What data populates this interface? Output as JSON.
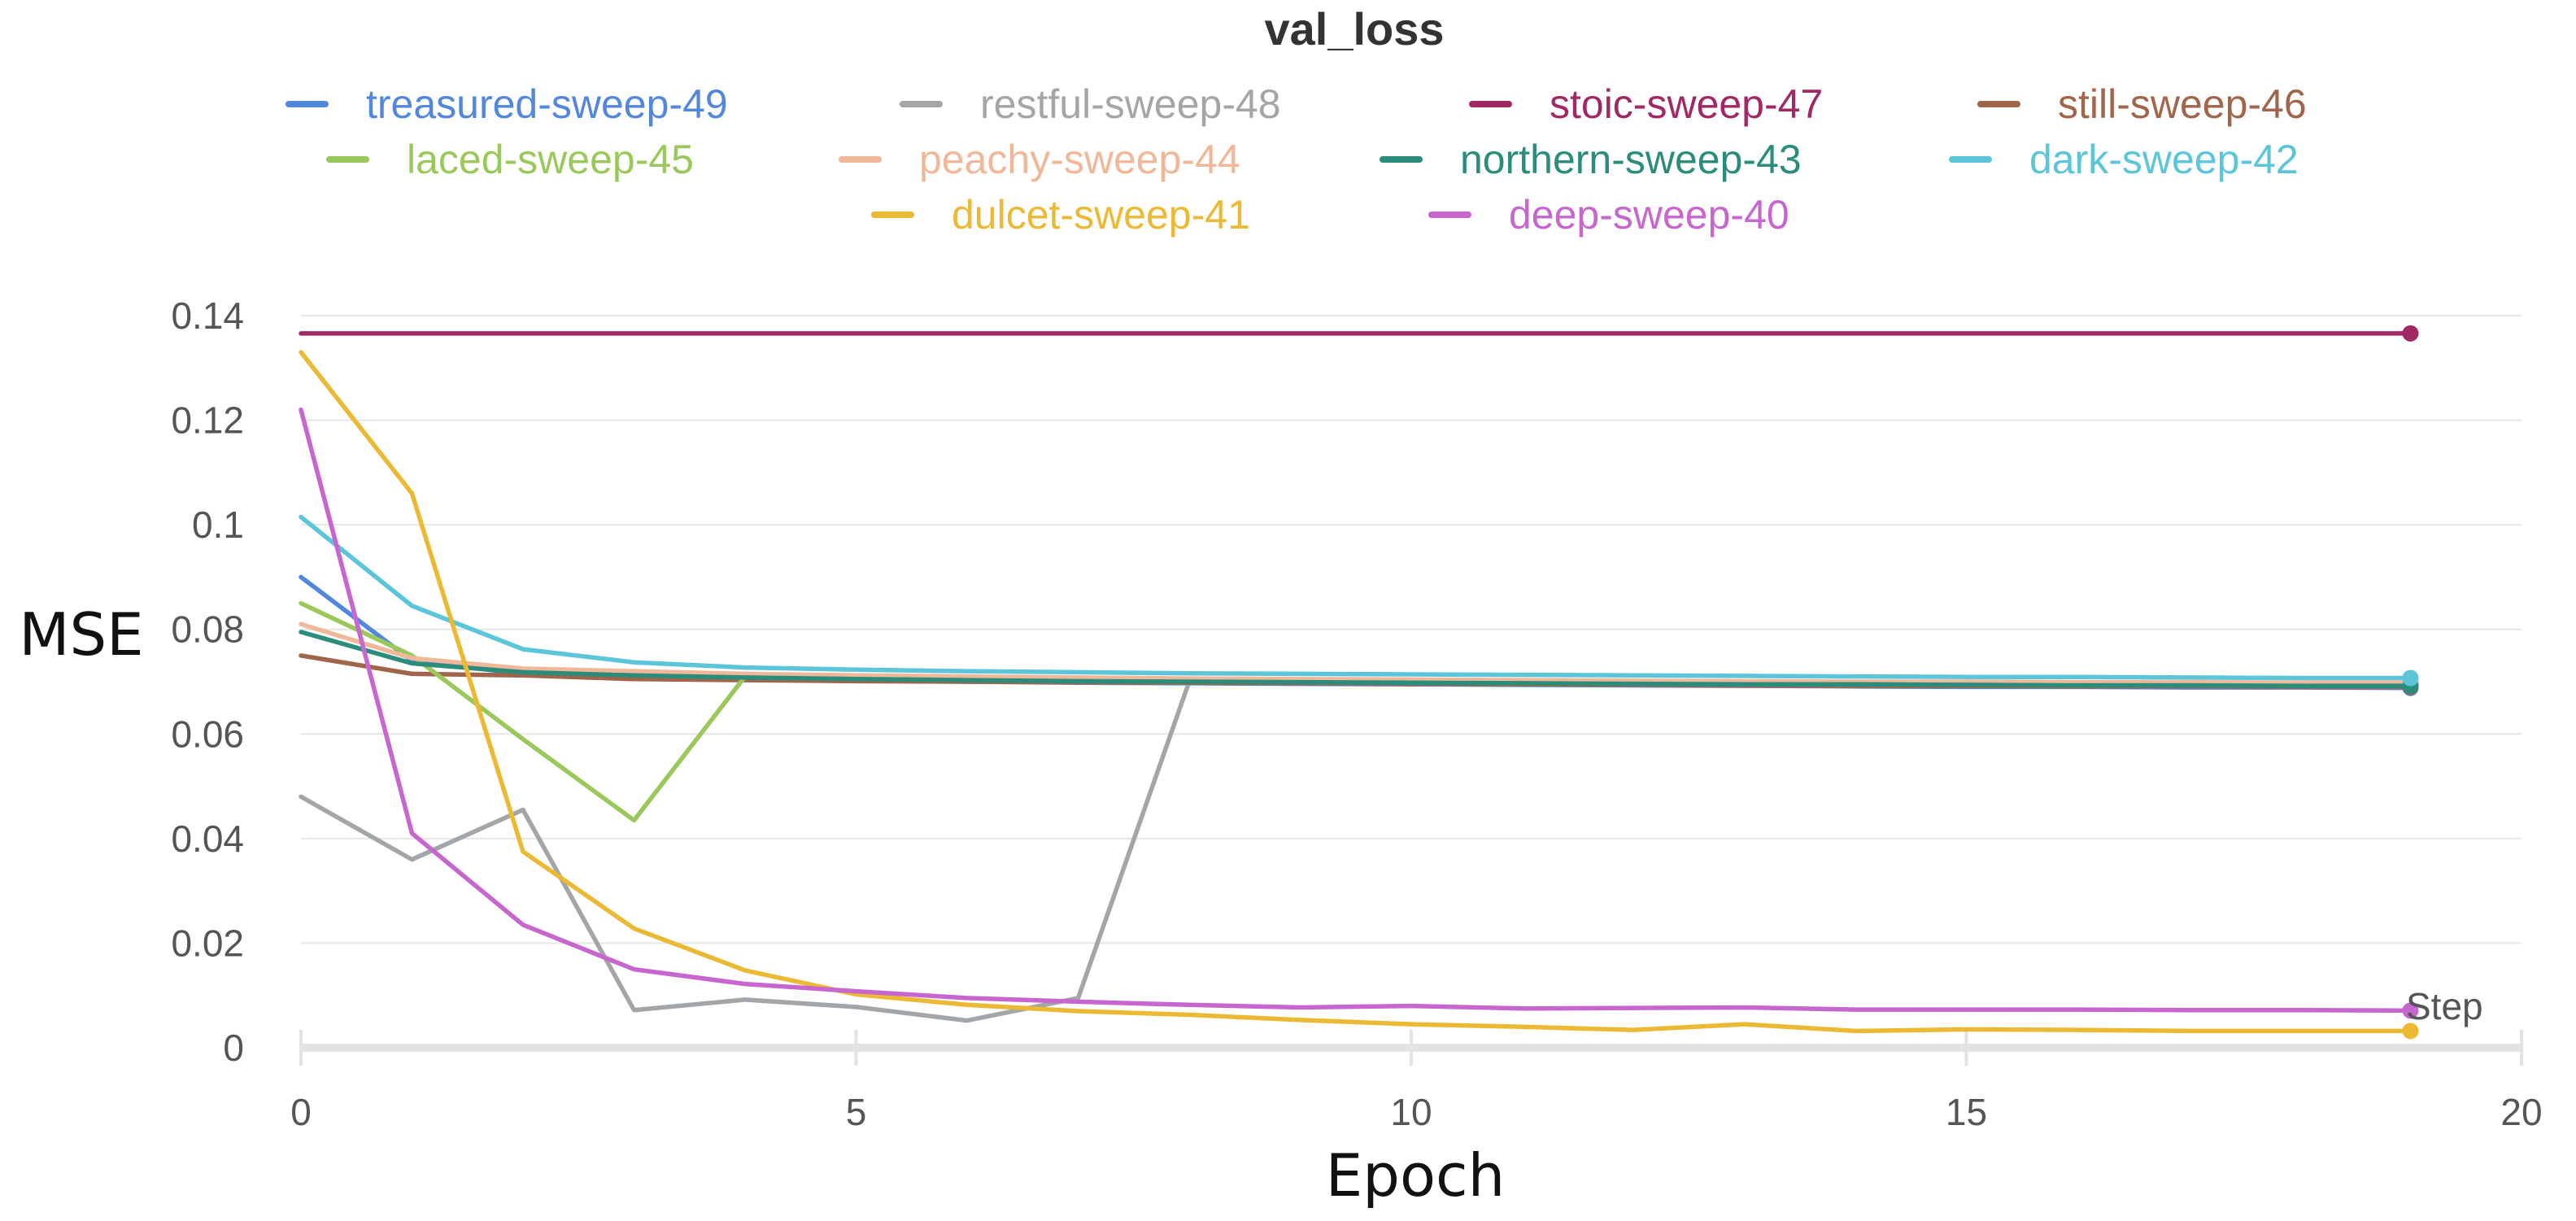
{
  "chart_data": {
    "type": "line",
    "title": "val_loss",
    "xlabel": "Epoch",
    "ylabel": "MSE",
    "corner_label": "Step",
    "xlim": [
      0,
      20
    ],
    "ylim": [
      0,
      0.14
    ],
    "x_ticks": [
      0,
      5,
      10,
      15,
      20
    ],
    "x_tick_labels": [
      "0",
      "5",
      "10",
      "15",
      "20"
    ],
    "y_ticks": [
      0,
      0.02,
      0.04,
      0.06,
      0.08,
      0.1,
      0.12,
      0.14
    ],
    "y_tick_labels": [
      "0",
      "0.02",
      "0.04",
      "0.06",
      "0.08",
      "0.1",
      "0.12",
      "0.14"
    ],
    "grid": true,
    "legend_position": "top",
    "x": [
      0,
      1,
      2,
      3,
      4,
      5,
      6,
      7,
      8,
      9,
      10,
      11,
      12,
      13,
      14,
      15,
      16,
      17,
      18,
      19
    ],
    "series": [
      {
        "name": "treasured-sweep-49",
        "color": "#5387dd",
        "values": [
          0.09,
          0.074,
          0.0715,
          0.0708,
          0.0705,
          0.0702,
          0.07,
          0.0698,
          0.0697,
          0.0696,
          0.0695,
          0.0694,
          0.0693,
          0.0692,
          0.0691,
          0.069,
          0.069,
          0.0689,
          0.0689,
          0.0688
        ]
      },
      {
        "name": "restful-sweep-48",
        "color": "#a2a6a9",
        "values": [
          0.048,
          0.036,
          0.0455,
          0.0072,
          0.0092,
          0.0078,
          0.0052,
          0.0095,
          0.07,
          0.07,
          0.07,
          0.0699,
          0.0699,
          0.0698,
          0.0698,
          0.0697,
          0.0697,
          0.0697,
          0.0696,
          0.0696
        ]
      },
      {
        "name": "stoic-sweep-47",
        "color": "#a12864",
        "values": [
          0.1366,
          0.1366,
          0.1366,
          0.1366,
          0.1366,
          0.1366,
          0.1366,
          0.1366,
          0.1366,
          0.1366,
          0.1366,
          0.1366,
          0.1366,
          0.1366,
          0.1366,
          0.1366,
          0.1366,
          0.1366,
          0.1366,
          0.1366
        ]
      },
      {
        "name": "still-sweep-46",
        "color": "#a0654b",
        "values": [
          0.075,
          0.0715,
          0.0712,
          0.0705,
          0.0703,
          0.0701,
          0.07,
          0.0699,
          0.0698,
          0.0697,
          0.0696,
          0.0695,
          0.0694,
          0.0693,
          0.0692,
          0.0692,
          0.0691,
          0.0691,
          0.069,
          0.069
        ]
      },
      {
        "name": "laced-sweep-45",
        "color": "#9bc85a",
        "values": [
          0.085,
          0.075,
          0.059,
          0.0435,
          0.071,
          0.071,
          0.0708,
          0.0706,
          0.0704,
          0.0703,
          0.0702,
          0.0701,
          0.07,
          0.07,
          0.0699,
          0.0699,
          0.0698,
          0.0698,
          0.0697,
          0.0697
        ]
      },
      {
        "name": "peachy-sweep-44",
        "color": "#f0b899",
        "values": [
          0.081,
          0.0745,
          0.0725,
          0.072,
          0.0715,
          0.0712,
          0.071,
          0.0708,
          0.0706,
          0.0705,
          0.0704,
          0.0703,
          0.0702,
          0.0701,
          0.07,
          0.07,
          0.0699,
          0.0699,
          0.0698,
          0.0698
        ]
      },
      {
        "name": "northern-sweep-43",
        "color": "#2a8c7a",
        "values": [
          0.0795,
          0.0735,
          0.0718,
          0.0712,
          0.0708,
          0.0705,
          0.0703,
          0.0701,
          0.07,
          0.0699,
          0.0698,
          0.0697,
          0.0696,
          0.0695,
          0.0695,
          0.0694,
          0.0693,
          0.0693,
          0.0692,
          0.0692
        ]
      },
      {
        "name": "dark-sweep-42",
        "color": "#5cc5d9",
        "values": [
          0.1015,
          0.0845,
          0.0762,
          0.0737,
          0.0727,
          0.0723,
          0.072,
          0.0718,
          0.0716,
          0.0715,
          0.0714,
          0.0713,
          0.0712,
          0.0711,
          0.071,
          0.0709,
          0.0709,
          0.0708,
          0.0707,
          0.0707
        ]
      },
      {
        "name": "dulcet-sweep-41",
        "color": "#ecb934",
        "values": [
          0.133,
          0.106,
          0.0375,
          0.0228,
          0.0148,
          0.0102,
          0.0082,
          0.007,
          0.0063,
          0.0053,
          0.0045,
          0.004,
          0.0034,
          0.0045,
          0.0032,
          0.0035,
          0.0034,
          0.0032,
          0.0032,
          0.0032
        ]
      },
      {
        "name": "deep-sweep-40",
        "color": "#c766cf",
        "values": [
          0.122,
          0.041,
          0.0235,
          0.015,
          0.0122,
          0.0108,
          0.0095,
          0.0088,
          0.0082,
          0.0077,
          0.008,
          0.0075,
          0.0076,
          0.0077,
          0.0073,
          0.0073,
          0.0073,
          0.0072,
          0.0072,
          0.0071
        ]
      }
    ]
  }
}
